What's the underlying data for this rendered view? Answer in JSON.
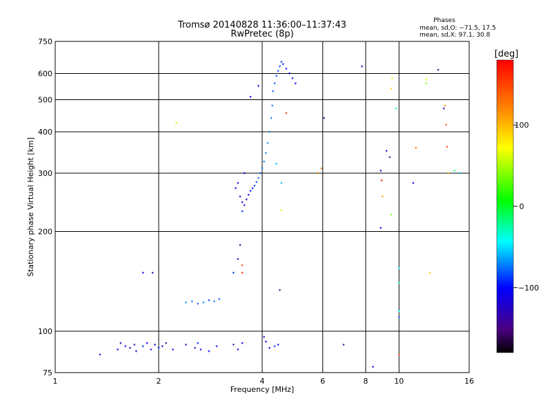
{
  "chart_data": {
    "type": "scatter",
    "title": "Tromsø 20140828 11:36:00–11:37:43",
    "subtitle": "RwPretec (8p)",
    "xlabel": "Frequency [MHz]",
    "ylabel": "Stationary phase Virtual Height [km]",
    "x_scale": "log",
    "y_scale": "log",
    "xlim": [
      1,
      16
    ],
    "ylim": [
      75,
      750
    ],
    "x_ticks": [
      1,
      2,
      4,
      6,
      8,
      10,
      16
    ],
    "y_ticks": [
      75,
      100,
      200,
      300,
      400,
      500,
      600,
      750
    ],
    "grid": true,
    "stats": {
      "heading": "Phases",
      "line1": "mean, sd,O: −71.5, 17.5",
      "line2": "mean, sd,X:  97.1, 30.8"
    },
    "colorbar": {
      "label": "[deg]",
      "range": [
        -180,
        180
      ],
      "ticks": [
        100,
        0,
        -100
      ],
      "palette": "rainbow"
    },
    "series": [
      {
        "points": [
          [
            1.35,
            85,
            -120
          ],
          [
            1.52,
            88,
            -110
          ],
          [
            1.55,
            92,
            -130
          ],
          [
            1.6,
            90,
            -100
          ],
          [
            1.65,
            89,
            -140
          ],
          [
            1.7,
            91,
            -120
          ],
          [
            1.72,
            87,
            -115
          ],
          [
            1.8,
            90,
            -90
          ],
          [
            1.85,
            92,
            -105
          ],
          [
            1.9,
            88,
            -125
          ],
          [
            1.95,
            91,
            -110
          ],
          [
            2.0,
            89,
            -95
          ],
          [
            2.05,
            90,
            -120
          ],
          [
            2.1,
            92,
            -135
          ],
          [
            2.2,
            88,
            -100
          ],
          [
            2.4,
            91,
            -110
          ],
          [
            2.55,
            89,
            -130
          ],
          [
            2.6,
            92,
            -95
          ],
          [
            2.65,
            88,
            -115
          ],
          [
            2.8,
            87,
            -100
          ],
          [
            2.95,
            90,
            -120
          ],
          [
            3.3,
            91,
            -140
          ],
          [
            3.4,
            88,
            -110
          ],
          [
            3.5,
            92,
            -100
          ],
          [
            4.05,
            96,
            -130
          ],
          [
            4.1,
            93,
            -110
          ],
          [
            4.2,
            89,
            -120
          ],
          [
            4.35,
            90,
            -90
          ],
          [
            4.45,
            91,
            -105
          ],
          [
            6.9,
            91,
            -130
          ],
          [
            8.4,
            78,
            -120
          ],
          [
            10.0,
            85,
            150
          ],
          [
            1.8,
            150,
            -110
          ],
          [
            1.92,
            150,
            -130
          ],
          [
            2.4,
            122,
            -70
          ],
          [
            2.5,
            123,
            -75
          ],
          [
            2.6,
            121,
            -80
          ],
          [
            2.7,
            122,
            -70
          ],
          [
            2.8,
            124,
            -85
          ],
          [
            2.9,
            123,
            -75
          ],
          [
            3.0,
            125,
            -80
          ],
          [
            3.3,
            150,
            -90
          ],
          [
            3.4,
            165,
            -130
          ],
          [
            3.5,
            158,
            150
          ],
          [
            3.5,
            150,
            160
          ],
          [
            3.45,
            182,
            -140
          ],
          [
            4.5,
            133,
            -150
          ],
          [
            2.25,
            425,
            50
          ],
          [
            3.35,
            270,
            -100
          ],
          [
            3.45,
            255,
            -110
          ],
          [
            3.5,
            245,
            -120
          ],
          [
            3.55,
            240,
            -125
          ],
          [
            3.6,
            250,
            -115
          ],
          [
            3.65,
            258,
            -105
          ],
          [
            3.7,
            265,
            -100
          ],
          [
            3.75,
            270,
            -95
          ],
          [
            3.8,
            275,
            -90
          ],
          [
            3.85,
            282,
            -85
          ],
          [
            3.9,
            290,
            -80
          ],
          [
            3.95,
            300,
            -78
          ],
          [
            4.0,
            310,
            -75
          ],
          [
            4.05,
            325,
            -72
          ],
          [
            4.1,
            345,
            -70
          ],
          [
            4.15,
            370,
            -68
          ],
          [
            4.2,
            400,
            -70
          ],
          [
            4.25,
            440,
            -72
          ],
          [
            4.28,
            480,
            -75
          ],
          [
            4.3,
            530,
            -78
          ],
          [
            4.35,
            560,
            -80
          ],
          [
            4.4,
            590,
            -82
          ],
          [
            4.45,
            610,
            -85
          ],
          [
            4.5,
            630,
            -88
          ],
          [
            4.55,
            650,
            -90
          ],
          [
            4.6,
            640,
            -95
          ],
          [
            4.7,
            620,
            -100
          ],
          [
            4.8,
            600,
            -110
          ],
          [
            4.9,
            580,
            -105
          ],
          [
            5.0,
            560,
            -100
          ],
          [
            3.4,
            280,
            -110
          ],
          [
            3.55,
            300,
            -120
          ],
          [
            3.5,
            230,
            -90
          ],
          [
            3.9,
            550,
            -120
          ],
          [
            3.7,
            510,
            -100
          ],
          [
            4.4,
            320,
            -60
          ],
          [
            4.55,
            280,
            -60
          ],
          [
            4.55,
            232,
            60
          ],
          [
            4.7,
            455,
            150
          ],
          [
            5.8,
            300,
            120
          ],
          [
            5.95,
            310,
            130
          ],
          [
            6.05,
            440,
            -140
          ],
          [
            7.8,
            630,
            -130
          ],
          [
            8.85,
            305,
            -120
          ],
          [
            8.9,
            285,
            170
          ],
          [
            8.95,
            255,
            110
          ],
          [
            8.85,
            205,
            -110
          ],
          [
            9.2,
            350,
            -120
          ],
          [
            9.4,
            335,
            -150
          ],
          [
            9.55,
            580,
            80
          ],
          [
            9.5,
            540,
            90
          ],
          [
            9.5,
            225,
            40
          ],
          [
            9.8,
            470,
            -30
          ],
          [
            10.0,
            155,
            -40
          ],
          [
            10.0,
            140,
            -30
          ],
          [
            10.0,
            115,
            -40
          ],
          [
            10.0,
            110,
            -80
          ],
          [
            11.0,
            280,
            -100
          ],
          [
            11.2,
            358,
            130
          ],
          [
            12.0,
            575,
            60
          ],
          [
            12.0,
            560,
            40
          ],
          [
            12.3,
            150,
            90
          ],
          [
            13.0,
            615,
            -140
          ],
          [
            13.5,
            470,
            -130
          ],
          [
            13.6,
            480,
            120
          ],
          [
            13.7,
            420,
            140
          ],
          [
            13.8,
            360,
            150
          ],
          [
            13.9,
            300,
            100
          ],
          [
            14.5,
            305,
            -20
          ],
          [
            15.0,
            300,
            -60
          ]
        ]
      }
    ]
  }
}
